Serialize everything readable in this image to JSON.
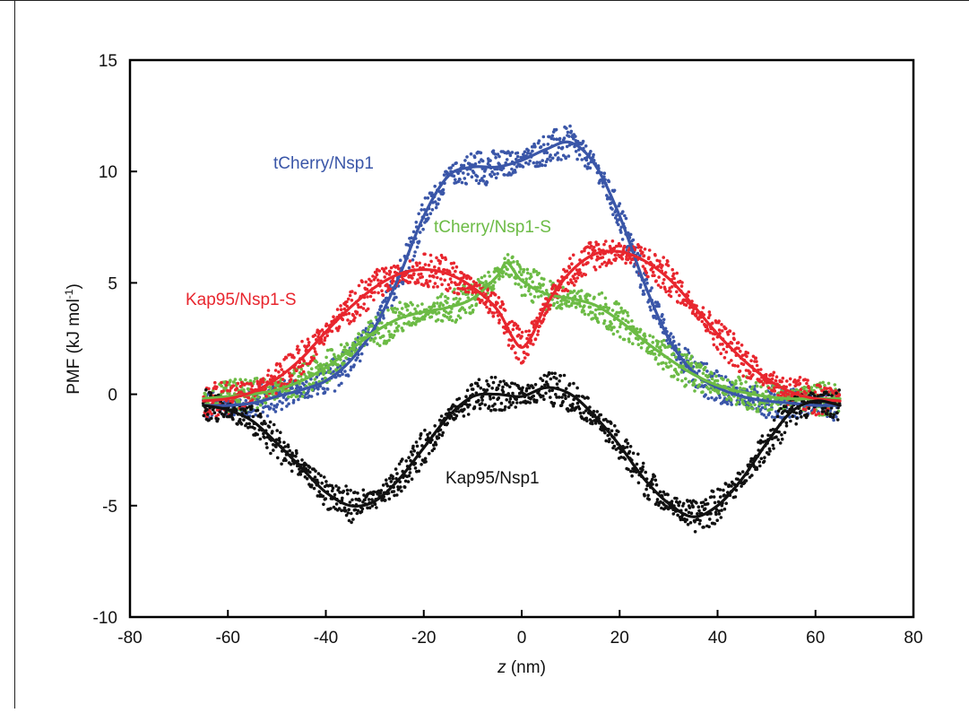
{
  "chart_data": {
    "type": "line",
    "xlabel_italic": "z",
    "xlabel_rest": " (nm)",
    "ylabel_main": "PMF (kJ mol",
    "ylabel_sup": "-1",
    "ylabel_close": ")",
    "xlim": [
      -80,
      80
    ],
    "ylim": [
      -10,
      15
    ],
    "xticks": [
      -80,
      -60,
      -40,
      -20,
      0,
      20,
      40,
      60,
      80
    ],
    "yticks": [
      -10,
      -5,
      0,
      5,
      10,
      15
    ],
    "grid": false,
    "series": [
      {
        "name": "tCherry/Nsp1",
        "color": "#3a56a8",
        "x": [
          -65,
          -60,
          -55,
          -50,
          -45,
          -40,
          -35,
          -30,
          -25,
          -20,
          -15,
          -10,
          -5,
          0,
          5,
          10,
          15,
          20,
          25,
          30,
          35,
          40,
          45,
          50,
          55,
          60,
          65
        ],
        "y": [
          -0.5,
          -0.5,
          -0.4,
          -0.1,
          0.2,
          0.6,
          1.5,
          3.0,
          5.3,
          8.0,
          9.8,
          10.2,
          10.2,
          10.5,
          11.0,
          11.3,
          10.3,
          8.0,
          5.0,
          2.5,
          1.0,
          0.3,
          -0.1,
          -0.3,
          -0.4,
          -0.5,
          -0.5
        ]
      },
      {
        "name": "tCherry/Nsp1-S",
        "color": "#6cbb45",
        "x": [
          -65,
          -60,
          -55,
          -50,
          -45,
          -40,
          -35,
          -30,
          -25,
          -20,
          -15,
          -10,
          -5,
          -3,
          0,
          5,
          10,
          15,
          20,
          25,
          30,
          35,
          40,
          45,
          50,
          55,
          60,
          65
        ],
        "y": [
          -0.2,
          -0.1,
          0.0,
          0.2,
          0.6,
          1.2,
          2.0,
          2.8,
          3.4,
          3.7,
          3.9,
          4.3,
          5.3,
          5.9,
          5.1,
          4.5,
          4.3,
          4.0,
          3.3,
          2.4,
          1.6,
          0.9,
          0.4,
          0.1,
          -0.1,
          -0.2,
          -0.2,
          -0.2
        ]
      },
      {
        "name": "Kap95/Nsp1-S",
        "color": "#e8262e",
        "x": [
          -65,
          -60,
          -55,
          -50,
          -45,
          -40,
          -35,
          -30,
          -25,
          -20,
          -15,
          -10,
          -5,
          -2,
          0,
          2,
          5,
          10,
          15,
          20,
          25,
          30,
          35,
          40,
          45,
          50,
          55,
          60,
          65
        ],
        "y": [
          -0.3,
          -0.2,
          0.1,
          0.7,
          1.6,
          2.8,
          3.9,
          4.8,
          5.4,
          5.6,
          5.4,
          4.8,
          3.8,
          2.6,
          2.1,
          2.6,
          4.0,
          5.5,
          6.3,
          6.4,
          6.0,
          5.2,
          4.0,
          2.7,
          1.6,
          0.7,
          0.1,
          -0.2,
          -0.3
        ]
      },
      {
        "name": "Kap95/Nsp1",
        "color": "#111111",
        "x": [
          -65,
          -60,
          -55,
          -50,
          -45,
          -40,
          -35,
          -30,
          -25,
          -20,
          -15,
          -10,
          -5,
          0,
          5,
          10,
          15,
          20,
          25,
          30,
          35,
          40,
          45,
          50,
          55,
          60,
          65
        ],
        "y": [
          -0.5,
          -0.7,
          -1.2,
          -2.2,
          -3.3,
          -4.4,
          -5.0,
          -4.8,
          -3.8,
          -2.4,
          -1.0,
          -0.1,
          0.0,
          -0.1,
          0.3,
          0.0,
          -1.0,
          -2.3,
          -3.8,
          -4.9,
          -5.5,
          -5.0,
          -3.8,
          -2.2,
          -0.8,
          -0.3,
          -0.5
        ]
      }
    ]
  }
}
